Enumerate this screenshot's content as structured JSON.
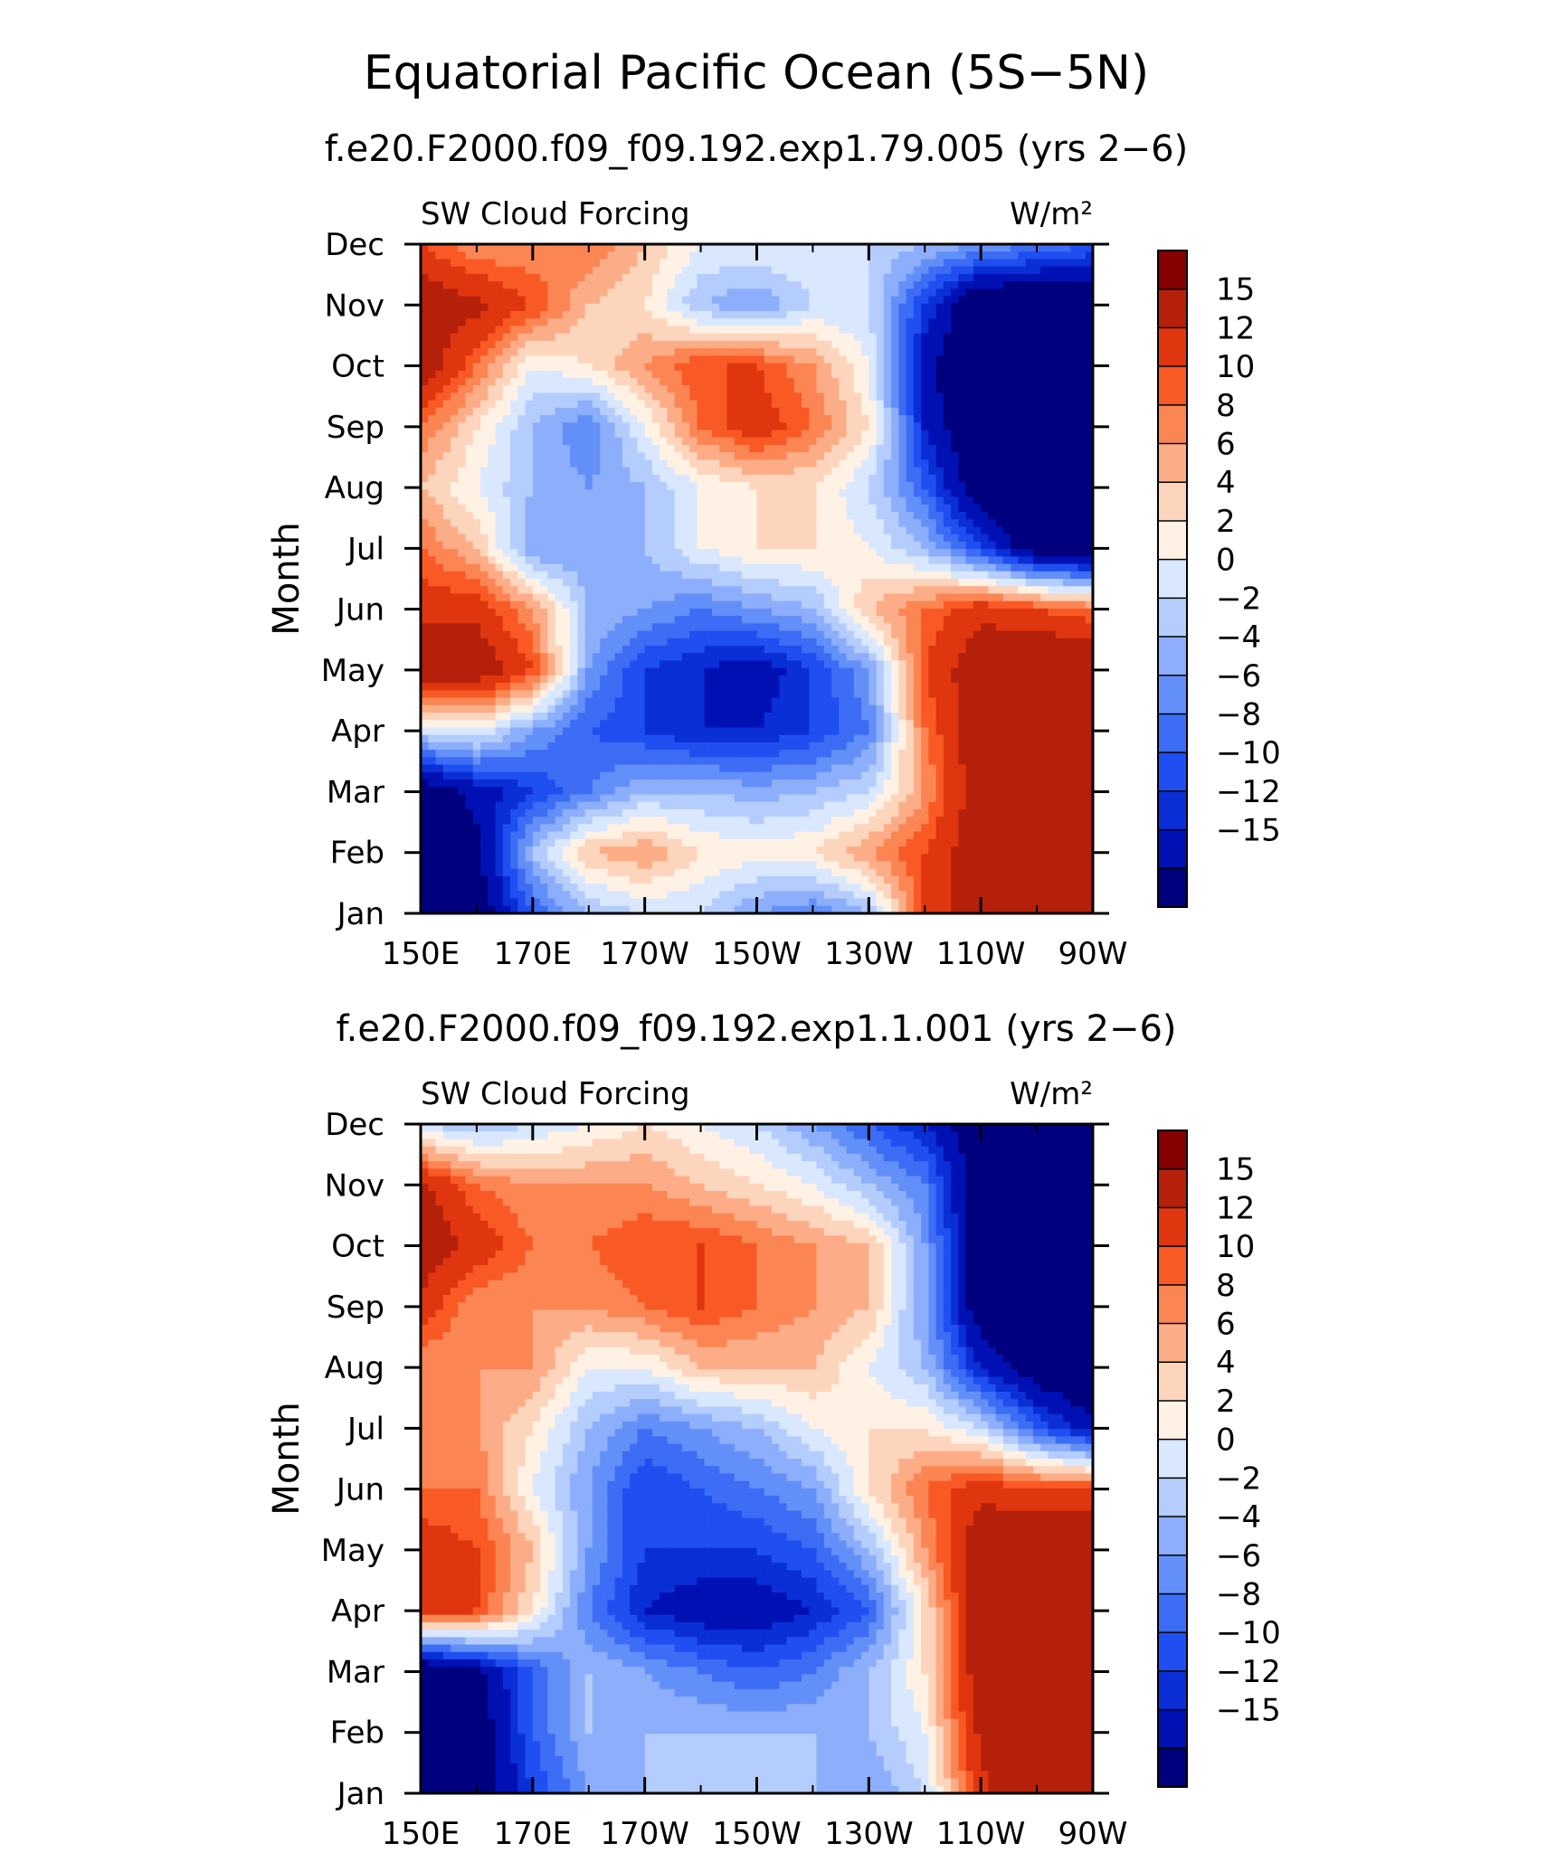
{
  "figure": {
    "title": "Equatorial Pacific Ocean (5S−5N)"
  },
  "palette": [
    "#00007F",
    "#0011B4",
    "#0A2FD6",
    "#1F4FF0",
    "#3D6CF5",
    "#6390F8",
    "#8CAEFB",
    "#B4CDFD",
    "#D9E8FE",
    "#FFF1E4",
    "#FDD4BC",
    "#FCAD87",
    "#FB8654",
    "#F95A25",
    "#E0360F",
    "#B5200A",
    "#870000"
  ],
  "colorbar_labels": [
    "15",
    "12",
    "10",
    "8",
    "6",
    "4",
    "2",
    "0",
    "−2",
    "−4",
    "−6",
    "−8",
    "−10",
    "−12",
    "−15"
  ],
  "chart_data": [
    {
      "type": "heatmap",
      "title": "f.e20.F2000.f09_f09.192.exp1.79.005 (yrs 2−6)",
      "left_label": "SW Cloud Forcing",
      "right_label": "W/m²",
      "ylabel": "Month",
      "x_ticks": [
        "150E",
        "170E",
        "170W",
        "150W",
        "130W",
        "110W",
        "90W"
      ],
      "y_ticks": [
        "Jan",
        "Feb",
        "Mar",
        "Apr",
        "May",
        "Jun",
        "Jul",
        "Aug",
        "Sep",
        "Oct",
        "Nov",
        "Dec"
      ],
      "levels": [
        -15,
        -12,
        -10,
        -8,
        -6,
        -4,
        -2,
        0,
        2,
        4,
        6,
        8,
        10,
        12,
        15
      ],
      "x_lon_east": [
        150,
        160,
        170,
        180,
        190,
        200,
        210,
        220,
        230,
        240,
        250,
        260,
        270
      ],
      "months": [
        "Jan",
        "Feb",
        "Mar",
        "Apr",
        "May",
        "Jun",
        "Jul",
        "Aug",
        "Sep",
        "Oct",
        "Nov",
        "Dec"
      ],
      "values": [
        [
          -20,
          -18,
          -8,
          -2,
          0,
          0,
          -4,
          -6,
          -2,
          12,
          18,
          20,
          20
        ],
        [
          -20,
          -16,
          -2,
          6,
          8,
          4,
          3,
          4,
          8,
          12,
          18,
          20,
          20
        ],
        [
          -18,
          -14,
          -10,
          -6,
          -2,
          -2,
          -3,
          -2,
          0,
          8,
          18,
          20,
          20
        ],
        [
          0,
          2,
          -4,
          -8,
          -10,
          -12,
          -12,
          -10,
          -6,
          10,
          18,
          20,
          20
        ],
        [
          18,
          18,
          12,
          -4,
          -10,
          -12,
          -14,
          -10,
          -4,
          12,
          18,
          20,
          20
        ],
        [
          14,
          14,
          8,
          -2,
          -4,
          -6,
          -4,
          -2,
          6,
          10,
          14,
          12,
          10
        ],
        [
          10,
          6,
          -4,
          -4,
          -2,
          2,
          4,
          4,
          2,
          -2,
          -10,
          -18,
          -20
        ],
        [
          6,
          2,
          -2,
          -4,
          -2,
          2,
          4,
          4,
          0,
          -8,
          -18,
          -20,
          -20
        ],
        [
          10,
          4,
          -2,
          -6,
          2,
          10,
          14,
          10,
          4,
          -12,
          -20,
          -20,
          -20
        ],
        [
          18,
          10,
          2,
          4,
          8,
          12,
          12,
          8,
          2,
          -14,
          -20,
          -20,
          -20
        ],
        [
          18,
          16,
          12,
          6,
          4,
          -2,
          -4,
          0,
          0,
          -10,
          -20,
          -20,
          -20
        ],
        [
          12,
          8,
          8,
          10,
          6,
          2,
          2,
          2,
          0,
          -2,
          -4,
          -6,
          -8
        ]
      ]
    },
    {
      "type": "heatmap",
      "title": "f.e20.F2000.f09_f09.192.exp1.1.001 (yrs 2−6)",
      "left_label": "SW Cloud Forcing",
      "right_label": "W/m²",
      "ylabel": "Month",
      "x_ticks": [
        "150E",
        "170E",
        "170W",
        "150W",
        "130W",
        "110W",
        "90W"
      ],
      "y_ticks": [
        "Jan",
        "Feb",
        "Mar",
        "Apr",
        "May",
        "Jun",
        "Jul",
        "Aug",
        "Sep",
        "Oct",
        "Nov",
        "Dec"
      ],
      "levels": [
        -15,
        -12,
        -10,
        -8,
        -6,
        -4,
        -2,
        0,
        2,
        4,
        6,
        8,
        10,
        12,
        15
      ],
      "x_lon_east": [
        150,
        160,
        170,
        180,
        190,
        200,
        210,
        220,
        230,
        240,
        250,
        260,
        270
      ],
      "months": [
        "Jan",
        "Feb",
        "Mar",
        "Apr",
        "May",
        "Jun",
        "Jul",
        "Aug",
        "Sep",
        "Oct",
        "Nov",
        "Dec"
      ],
      "values": [
        [
          -20,
          -18,
          -10,
          -4,
          -2,
          -2,
          0,
          -2,
          -4,
          0,
          14,
          20,
          20
        ],
        [
          -20,
          -18,
          -8,
          -2,
          -2,
          -2,
          -2,
          -2,
          -2,
          2,
          16,
          20,
          20
        ],
        [
          -20,
          -16,
          -8,
          -2,
          -4,
          -6,
          -8,
          -6,
          -2,
          4,
          18,
          20,
          20
        ],
        [
          14,
          12,
          4,
          -6,
          -12,
          -14,
          -14,
          -12,
          -8,
          4,
          18,
          20,
          20
        ],
        [
          14,
          12,
          6,
          -4,
          -10,
          -10,
          -10,
          -8,
          -2,
          8,
          18,
          20,
          20
        ],
        [
          10,
          10,
          2,
          -4,
          -10,
          -8,
          -6,
          -4,
          4,
          10,
          14,
          12,
          12
        ],
        [
          8,
          8,
          4,
          -2,
          -6,
          -4,
          -2,
          2,
          4,
          4,
          0,
          -8,
          -14
        ],
        [
          8,
          8,
          8,
          2,
          2,
          6,
          6,
          6,
          2,
          -2,
          -12,
          -18,
          -20
        ],
        [
          14,
          8,
          8,
          8,
          10,
          12,
          10,
          8,
          6,
          -4,
          -18,
          -20,
          -20
        ],
        [
          18,
          14,
          10,
          10,
          12,
          12,
          10,
          8,
          6,
          -4,
          -18,
          -20,
          -20
        ],
        [
          16,
          10,
          8,
          8,
          8,
          6,
          4,
          2,
          -2,
          -6,
          -18,
          -20,
          -20
        ],
        [
          0,
          -2,
          0,
          2,
          4,
          2,
          0,
          -4,
          -8,
          -12,
          -18,
          -20,
          -18
        ]
      ]
    }
  ]
}
